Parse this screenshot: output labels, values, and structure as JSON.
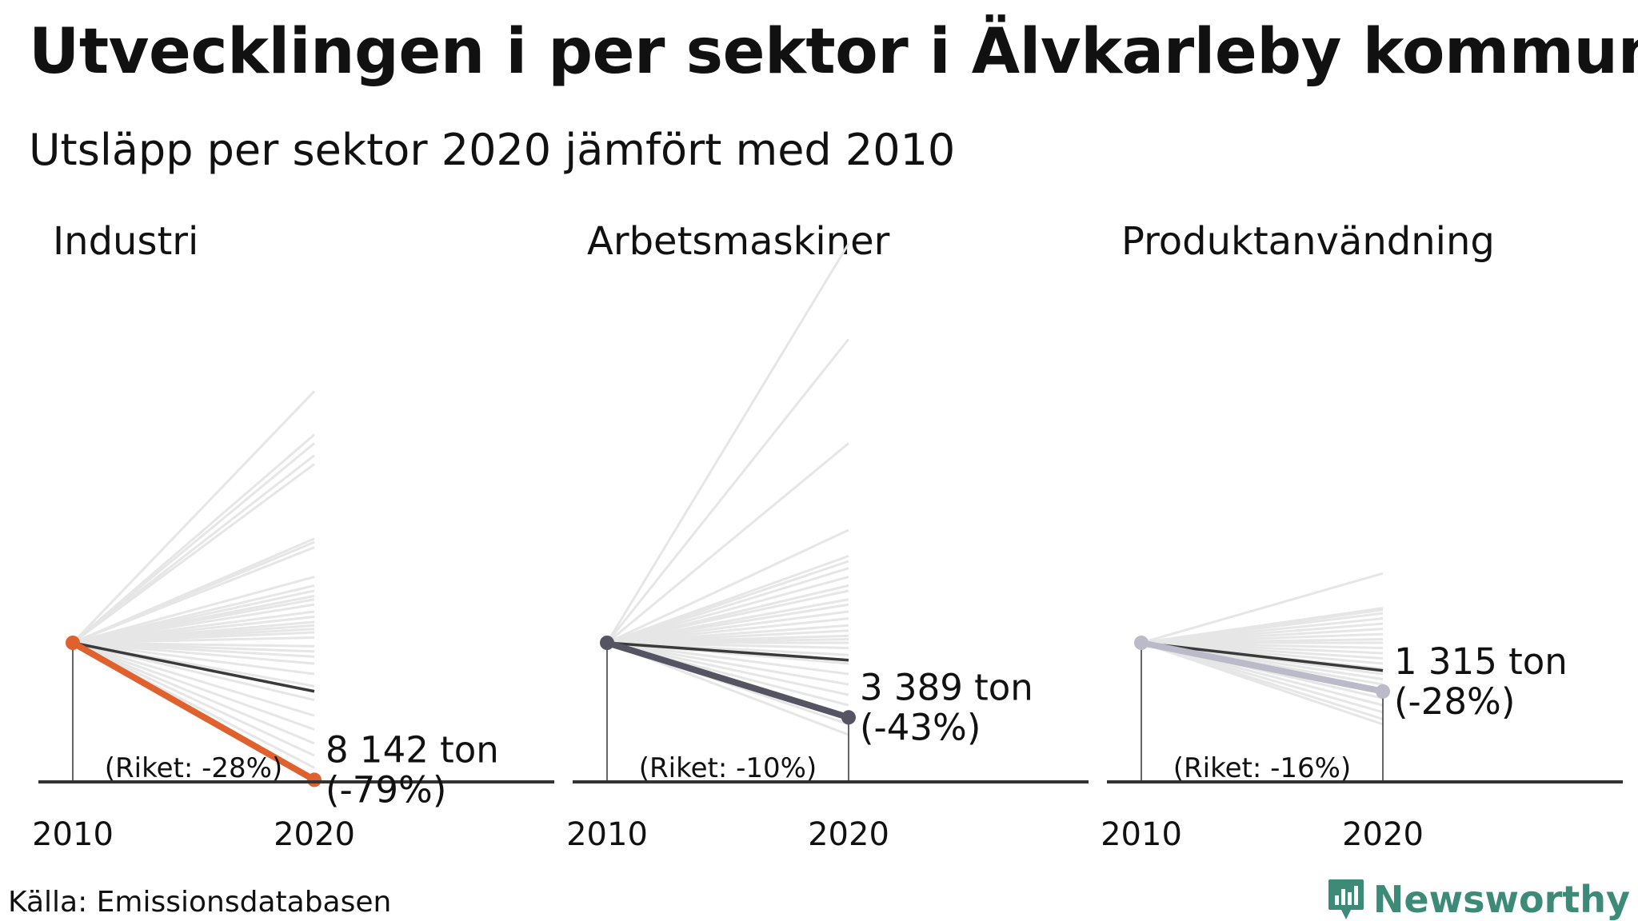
{
  "title": "Utvecklingen i per sektor i Älvkarleby kommun",
  "subtitle": "Utsläpp per sektor 2020 jämfört med 2010",
  "source": "Källa: Emissionsdatabasen",
  "brand": {
    "name": "Newsworthy",
    "color": "#3c8a77"
  },
  "chart_data": [
    {
      "type": "line",
      "title": "Industri",
      "x": [
        "2010",
        "2020"
      ],
      "color": "#e0612e",
      "value_label": "8 142 ton",
      "change_label": "(-79%)",
      "change_pct": -79,
      "national_label": "(Riket: -28%)",
      "national_pct": -28,
      "background_changes_pct": [
        145,
        120,
        115,
        108,
        103,
        60,
        58,
        55,
        38,
        33,
        30,
        27,
        25,
        22,
        18,
        15,
        12,
        10,
        8,
        6,
        3,
        -2,
        -5,
        -8,
        -12,
        -18,
        -25,
        -33,
        -42,
        -50,
        -58,
        -65,
        -72,
        -80
      ]
    },
    {
      "type": "line",
      "title": "Arbetsmaskiner",
      "x": [
        "2010",
        "2020"
      ],
      "color": "#545463",
      "value_label": "3 389 ton",
      "change_label": "(-43%)",
      "change_pct": -43,
      "national_label": "(Riket: -10%)",
      "national_pct": -10,
      "background_changes_pct": [
        230,
        175,
        115,
        65,
        50,
        47,
        43,
        38,
        33,
        30,
        25,
        22,
        18,
        14,
        10,
        7,
        4,
        2,
        0,
        -3,
        -7,
        -12,
        -18,
        -24,
        -30,
        -36,
        -42,
        -47,
        -53
      ]
    },
    {
      "type": "line",
      "title": "Produktanvändning",
      "x": [
        "2010",
        "2020"
      ],
      "color": "#babac8",
      "value_label": "1 315 ton",
      "change_label": "(-28%)",
      "change_pct": -28,
      "national_label": "(Riket: -16%)",
      "national_pct": -16,
      "background_changes_pct": [
        40,
        20,
        19,
        17,
        14,
        11,
        8,
        5,
        2,
        0,
        -3,
        -6,
        -9,
        -12,
        -15,
        -18,
        -21,
        -24,
        -28,
        -32,
        -36,
        -40,
        -44,
        -47
      ]
    }
  ]
}
